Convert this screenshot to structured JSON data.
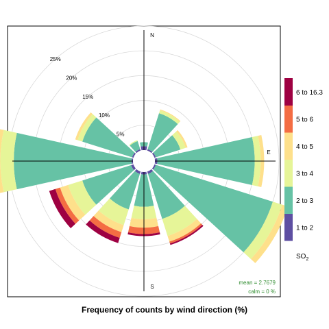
{
  "chart_data": {
    "type": "windrose",
    "title": "Frequency of counts by wind direction (%)",
    "pollutant_label": "SO",
    "pollutant_subscript": "2",
    "directions_deg": [
      0,
      30,
      60,
      90,
      120,
      150,
      180,
      210,
      240,
      270,
      300,
      330
    ],
    "compass": {
      "north": "N",
      "east": "E",
      "south": "S"
    },
    "rings": [
      {
        "value": 5,
        "label": "5%"
      },
      {
        "value": 10,
        "label": "10%"
      },
      {
        "value": 15,
        "label": "15%"
      },
      {
        "value": 20,
        "label": "20%"
      },
      {
        "value": 25,
        "label": "25%"
      }
    ],
    "rmax": 26.5,
    "bins": [
      {
        "label": "1 to 2",
        "color": "#5e4fa2"
      },
      {
        "label": "2 to 3",
        "color": "#66c2a5"
      },
      {
        "label": "3 to 4",
        "color": "#e6f598"
      },
      {
        "label": "4 to 5",
        "color": "#fee08b"
      },
      {
        "label": "5 to 6",
        "color": "#f46d43"
      },
      {
        "label": "6 to 16.3",
        "color": "#9e0142"
      }
    ],
    "series_cumulative_pct": [
      [
        0.8,
        1.6,
        1.6,
        1.6,
        1.6,
        1.6
      ],
      [
        0.3,
        7.9,
        8.5,
        8.7,
        8.7,
        8.7
      ],
      [
        0.3,
        5.5,
        6.6,
        7.0,
        7.0,
        7.0
      ],
      [
        0.5,
        20.1,
        21.3,
        22.0,
        22.0,
        22.0
      ],
      [
        0.3,
        25.0,
        27.0,
        28.2,
        28.2,
        28.2
      ],
      [
        0.5,
        10.0,
        13.6,
        14.8,
        15.2,
        15.5
      ],
      [
        0.5,
        7.0,
        9.5,
        11.2,
        12.5,
        12.9
      ],
      [
        0.5,
        8.0,
        11.3,
        12.8,
        14.0,
        15.1
      ],
      [
        0.5,
        10.8,
        13.8,
        15.5,
        16.5,
        17.8
      ],
      [
        0.3,
        24.0,
        26.7,
        27.7,
        27.7,
        27.7
      ],
      [
        0.3,
        10.8,
        11.8,
        12.3,
        12.3,
        12.3
      ],
      [
        0.3,
        2.0,
        2.2,
        2.2,
        2.2,
        2.2
      ]
    ],
    "stats": {
      "mean": "mean =  2.7679",
      "calm": "calm =  0 %"
    }
  }
}
